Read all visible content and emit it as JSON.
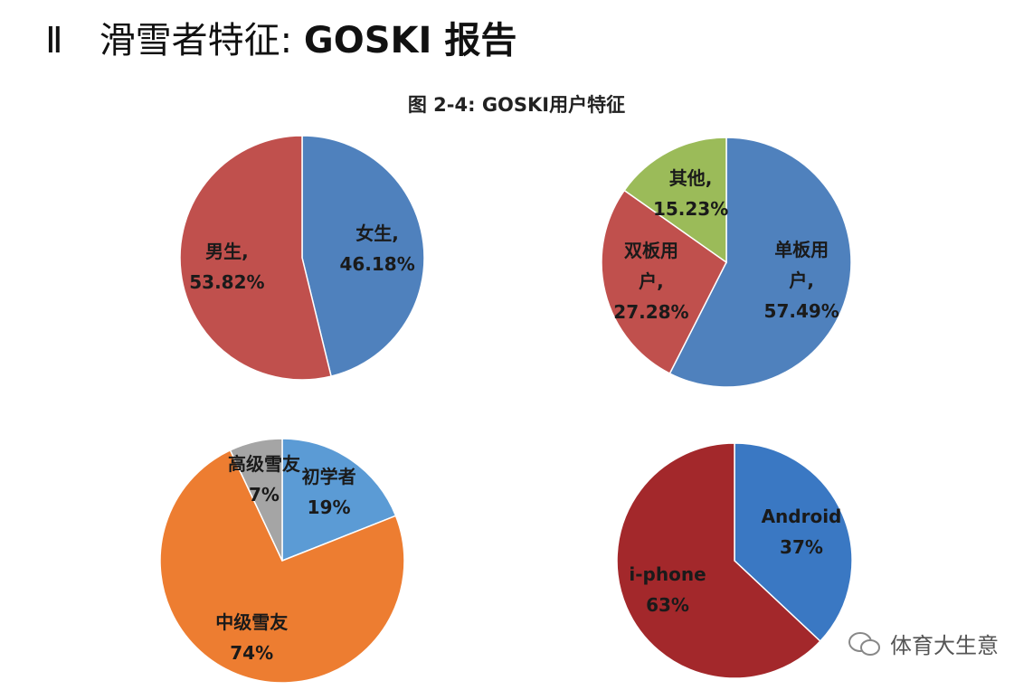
{
  "header": {
    "numeral": "Ⅱ",
    "title": "滑雪者特征:",
    "title_bold": "GOSKI 报告"
  },
  "figure_title": "图 2-4: GOSKI用户特征",
  "chart_data": [
    {
      "type": "pie",
      "categories": [
        "女生,",
        "男生,"
      ],
      "values": [
        46.18,
        53.82
      ],
      "value_labels": [
        "46.18%",
        "53.82%"
      ],
      "colors": [
        "#4f81bd",
        "#c0504d"
      ]
    },
    {
      "type": "pie",
      "categories": [
        "单板用户,",
        "双板用户,",
        "其他,"
      ],
      "values": [
        57.49,
        27.28,
        15.23
      ],
      "value_labels": [
        "57.49%",
        "27.28%",
        "15.23%"
      ],
      "colors": [
        "#4f81bd",
        "#c0504d",
        "#9bbb59"
      ]
    },
    {
      "type": "pie",
      "categories": [
        "初学者",
        "中级雪友",
        "高级雪友"
      ],
      "values": [
        19,
        74,
        7
      ],
      "value_labels": [
        "19%",
        "74%",
        "7%"
      ],
      "colors": [
        "#5b9bd5",
        "#ed7d31",
        "#a5a5a5"
      ]
    },
    {
      "type": "pie",
      "categories": [
        "Android",
        "i-phone"
      ],
      "values": [
        37,
        63
      ],
      "value_labels": [
        "37%",
        "63%"
      ],
      "colors": [
        "#3a78c3",
        "#a3282b"
      ]
    }
  ],
  "watermark": "体育大生意"
}
